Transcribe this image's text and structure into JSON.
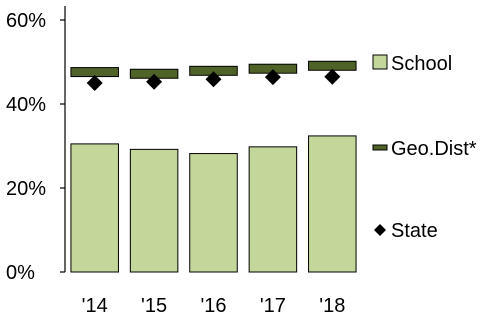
{
  "chart_data": {
    "type": "bar",
    "categories": [
      "'14",
      "'15",
      "'16",
      "'17",
      "'18"
    ],
    "series": [
      {
        "name": "School",
        "type": "bar",
        "values": [
          30.5,
          29.2,
          28.2,
          29.8,
          32.4
        ],
        "color": "#c4d79b",
        "stroke": "#000000"
      },
      {
        "name": "Geo.Dist*",
        "type": "dash",
        "values": [
          47.6,
          47.2,
          47.9,
          48.4,
          49.1
        ],
        "color": "#4f6228",
        "stroke": "#000000"
      },
      {
        "name": "State",
        "type": "marker",
        "values": [
          45.0,
          45.3,
          45.9,
          46.4,
          46.5
        ],
        "color": "#000000"
      }
    ],
    "yticks": [
      "0%",
      "20%",
      "40%",
      "60%"
    ],
    "ylim": [
      0,
      60
    ],
    "legend_position": "right",
    "grid": false
  }
}
